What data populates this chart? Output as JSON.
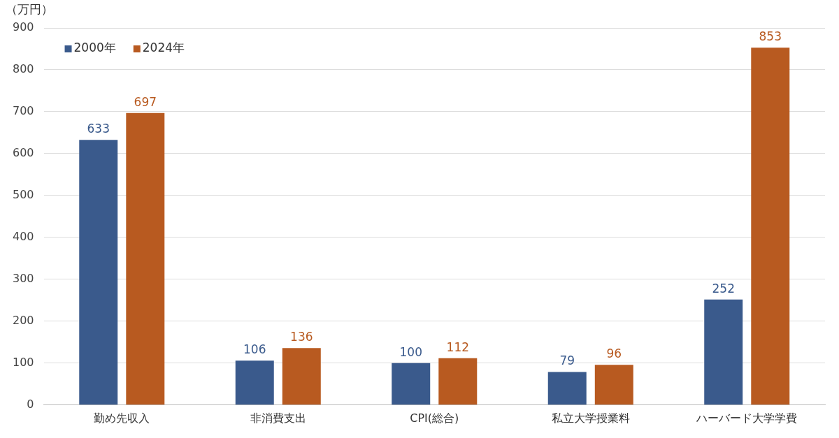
{
  "chart_data": {
    "type": "bar",
    "ylabel": "（万円）",
    "categories": [
      "勤め先収入",
      "非消費支出",
      "CPI(総合)",
      "私立大学授業料",
      "ハーバード大学学費"
    ],
    "series": [
      {
        "name": "2000年",
        "color": "#3a5a8c",
        "values": [
          633,
          106,
          100,
          79,
          252
        ]
      },
      {
        "name": "2024年",
        "color": "#b85a20",
        "values": [
          697,
          136,
          112,
          96,
          853
        ]
      }
    ],
    "ylim": [
      0,
      900
    ],
    "yticks": [
      0,
      100,
      200,
      300,
      400,
      500,
      600,
      700,
      800,
      900
    ],
    "grid": "y",
    "legend": "top left",
    "data_labels": true
  }
}
